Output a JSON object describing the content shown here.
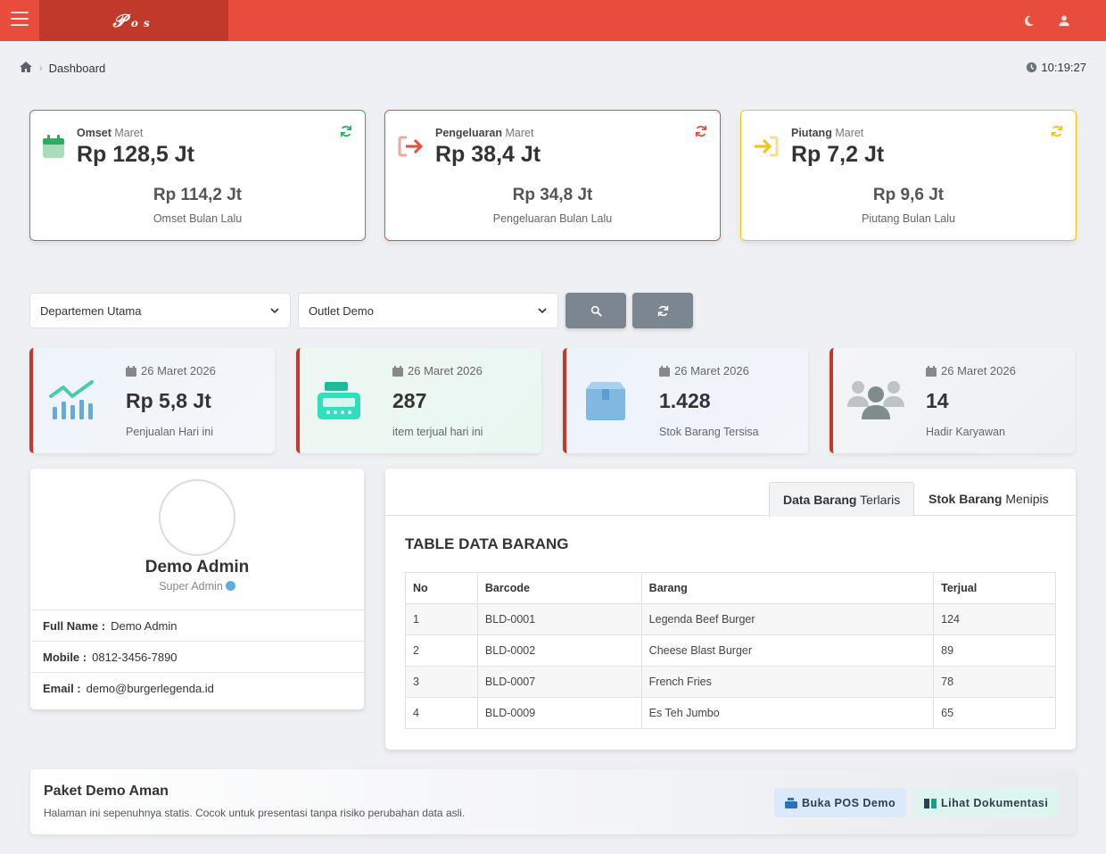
{
  "header": {
    "logo_main": "𝒫",
    "logo_o": "o",
    "logo_s": "s"
  },
  "breadcrumb": {
    "page": "Dashboard"
  },
  "clock": "10:19:27",
  "summary": [
    {
      "label_bold": "Omset",
      "label_month": "Maret",
      "value": "Rp 128,5 Jt",
      "prev_value": "Rp 114,2 Jt",
      "prev_label": "Omset Bulan Lalu",
      "color": "#27ae60"
    },
    {
      "label_bold": "Pengeluaran",
      "label_month": "Maret",
      "value": "Rp 38,4 Jt",
      "prev_value": "Rp 34,8 Jt",
      "prev_label": "Pengeluaran Bulan Lalu",
      "color": "#e74c3c"
    },
    {
      "label_bold": "Piutang",
      "label_month": "Maret",
      "value": "Rp 7,2 Jt",
      "prev_value": "Rp 9,6 Jt",
      "prev_label": "Piutang Bulan Lalu",
      "color": "#f1c40f"
    }
  ],
  "filters": {
    "departemen": "Departemen Utama",
    "outlet": "Outlet Demo"
  },
  "stats": [
    {
      "date": "26 Maret 2026",
      "value": "Rp 5,8 Jt",
      "label": "Penjualan Hari ini",
      "icon": "chart-icon"
    },
    {
      "date": "26 Maret 2026",
      "value": "287",
      "label": "item terjual hari ini",
      "icon": "cash-register-icon"
    },
    {
      "date": "26 Maret 2026",
      "value": "1.428",
      "label": "Stok Barang Tersisa",
      "icon": "box-icon"
    },
    {
      "date": "26 Maret 2026",
      "value": "14",
      "label": "Hadir Karyawan",
      "icon": "users-icon"
    }
  ],
  "profile": {
    "name": "Demo Admin",
    "role": "Super Admin",
    "fields": [
      {
        "label": "Full Name :",
        "value": "Demo Admin"
      },
      {
        "label": "Mobile :",
        "value": "0812-3456-7890"
      },
      {
        "label": "Email :",
        "value": "demo@burgerlegenda.id"
      }
    ]
  },
  "table_panel": {
    "tabs": [
      {
        "bold": "Data Barang",
        "rest": "Terlaris"
      },
      {
        "bold": "Stok Barang",
        "rest": "Menipis"
      }
    ],
    "title": "TABLE DATA BARANG",
    "columns": [
      "No",
      "Barcode",
      "Barang",
      "Terjual"
    ],
    "rows": [
      [
        "1",
        "BLD-0001",
        "Legenda Beef Burger",
        "124"
      ],
      [
        "2",
        "BLD-0002",
        "Cheese Blast Burger",
        "89"
      ],
      [
        "3",
        "BLD-0007",
        "French Fries",
        "78"
      ],
      [
        "4",
        "BLD-0009",
        "Es Teh Jumbo",
        "65"
      ]
    ]
  },
  "footer": {
    "title": "Paket Demo Aman",
    "subtitle": "Halaman ini sepenuhnya statis. Cocok untuk presentasi tanpa risiko perubahan data asli.",
    "btn_pos": "Buka POS Demo",
    "btn_docs": "Lihat Dokumentasi"
  },
  "colors": {
    "brand": "#e74c3c",
    "brand_dark": "#c0392b"
  }
}
